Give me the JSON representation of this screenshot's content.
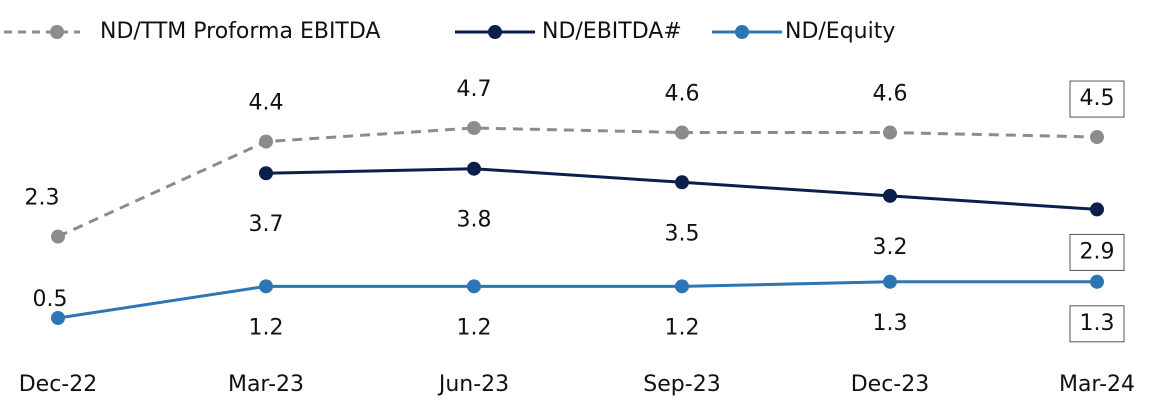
{
  "chart_data": {
    "type": "line",
    "categories": [
      "Dec-22",
      "Mar-23",
      "Jun-23",
      "Sep-23",
      "Dec-23",
      "Mar-24"
    ],
    "series": [
      {
        "name": "ND/TTM Proforma EBITDA",
        "color": "#8c8c8c",
        "dashed": true,
        "values": [
          2.3,
          4.4,
          4.7,
          4.6,
          4.6,
          4.5
        ]
      },
      {
        "name": "ND/EBITDA#",
        "color": "#0b1f4d",
        "values": [
          null,
          3.7,
          3.8,
          3.5,
          3.2,
          2.9
        ]
      },
      {
        "name": "ND/Equity",
        "color": "#2e75b6",
        "values": [
          0.5,
          1.2,
          1.2,
          1.2,
          1.3,
          1.3
        ]
      }
    ],
    "legend": "top"
  }
}
